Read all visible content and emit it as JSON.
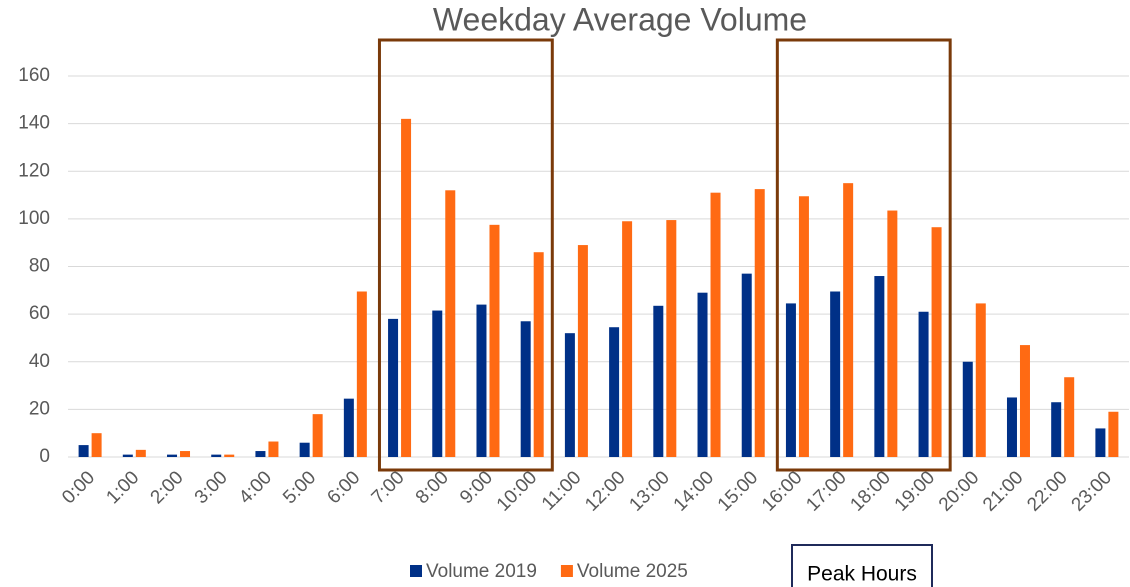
{
  "chart_data": {
    "type": "bar",
    "title": "Weekday Average Volume",
    "categories": [
      "0:00",
      "1:00",
      "2:00",
      "3:00",
      "4:00",
      "5:00",
      "6:00",
      "7:00",
      "8:00",
      "9:00",
      "10:00",
      "11:00",
      "12:00",
      "13:00",
      "14:00",
      "15:00",
      "16:00",
      "17:00",
      "18:00",
      "19:00",
      "20:00",
      "21:00",
      "22:00",
      "23:00"
    ],
    "series": [
      {
        "name": "Volume 2019",
        "color": "#003087",
        "values": [
          5,
          1,
          1,
          1,
          2.5,
          6,
          24.5,
          58,
          61.5,
          64,
          57,
          52,
          54.5,
          63.5,
          69,
          77,
          64.5,
          69.5,
          76,
          61,
          40,
          25,
          23,
          12
        ]
      },
      {
        "name": "Volume 2025",
        "color": "#ff6a13",
        "values": [
          10,
          3,
          2.5,
          1,
          6.5,
          18,
          69.5,
          142,
          112,
          97.5,
          86,
          89,
          99,
          99.5,
          111,
          112.5,
          109.5,
          115,
          103.5,
          96.5,
          64.5,
          47,
          33.5,
          19
        ]
      }
    ],
    "ylim": [
      0,
      160
    ],
    "yticks": [
      0,
      20,
      40,
      60,
      80,
      100,
      120,
      140,
      160
    ],
    "grid": true,
    "peak_hours": {
      "label": "Peak Hours",
      "color": "#7a3a0a",
      "ranges": [
        [
          "7:00",
          "10:00"
        ],
        [
          "16:00",
          "19:00"
        ]
      ]
    }
  }
}
